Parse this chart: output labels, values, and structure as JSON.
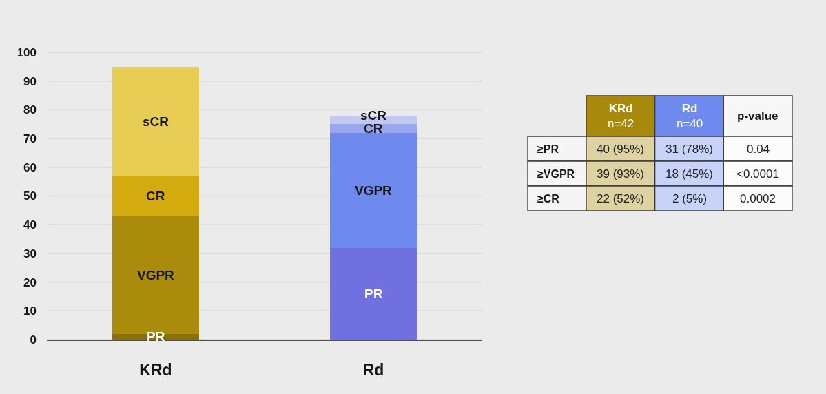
{
  "chart_data": [
    {
      "type": "bar",
      "stacked": true,
      "categories": [
        "KRd",
        "Rd"
      ],
      "ylim": [
        0,
        100
      ],
      "yticks": [
        0,
        10,
        20,
        30,
        40,
        50,
        60,
        70,
        80,
        90,
        100
      ],
      "grid": "y",
      "series": [
        {
          "name": "PR",
          "colors": [
            "#8a700a",
            "#7070e0"
          ],
          "values": [
            2,
            32
          ]
        },
        {
          "name": "VGPR",
          "colors": [
            "#ab8b0c",
            "#6f8aee"
          ],
          "values": [
            41,
            40
          ]
        },
        {
          "name": "CR",
          "colors": [
            "#d4ab0e",
            "#99a8ed"
          ],
          "values": [
            14,
            3
          ]
        },
        {
          "name": "sCR",
          "colors": [
            "#e8cd55",
            "#c0c9f0"
          ],
          "values": [
            38,
            3
          ]
        }
      ]
    },
    {
      "type": "other",
      "categories": [
        "KRd\nn=42",
        "Rd\nn=40",
        "p-value"
      ],
      "colors": [
        "#a8890c",
        "#6f8aee",
        "#f7f7f7"
      ],
      "y_categories": [
        "≥PR",
        "≥VGPR",
        "≥CR"
      ],
      "cell_labels": [
        [
          "40 (95%)",
          "31 (78%)",
          "0.04"
        ],
        [
          "39 (93%)",
          "18 (45%)",
          "<0.0001"
        ],
        [
          "22 (52%)",
          "2 (5%)",
          "0.0002"
        ]
      ]
    }
  ]
}
